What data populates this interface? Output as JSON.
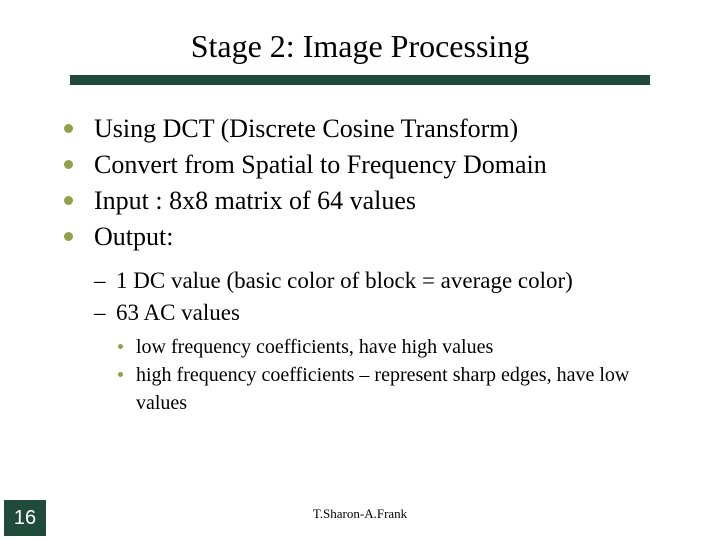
{
  "colors": {
    "rule": "#204a3a",
    "bullet": "#8fa24a",
    "pagebox": "#204a3a"
  },
  "title": "Stage 2: Image Processing",
  "bullets": [
    "Using DCT (Discrete Cosine Transform)",
    "Convert from Spatial to Frequency Domain",
    "Input : 8x8 matrix of 64 values",
    "Output:"
  ],
  "sub_bullets": [
    "1 DC value (basic color of block = average color)",
    "63  AC values"
  ],
  "subsub_bullets": [
    "low frequency coefficients, have high values",
    "high frequency coefficients – represent sharp edges, have low values"
  ],
  "footer": "T.Sharon-A.Frank",
  "page_number": "16"
}
